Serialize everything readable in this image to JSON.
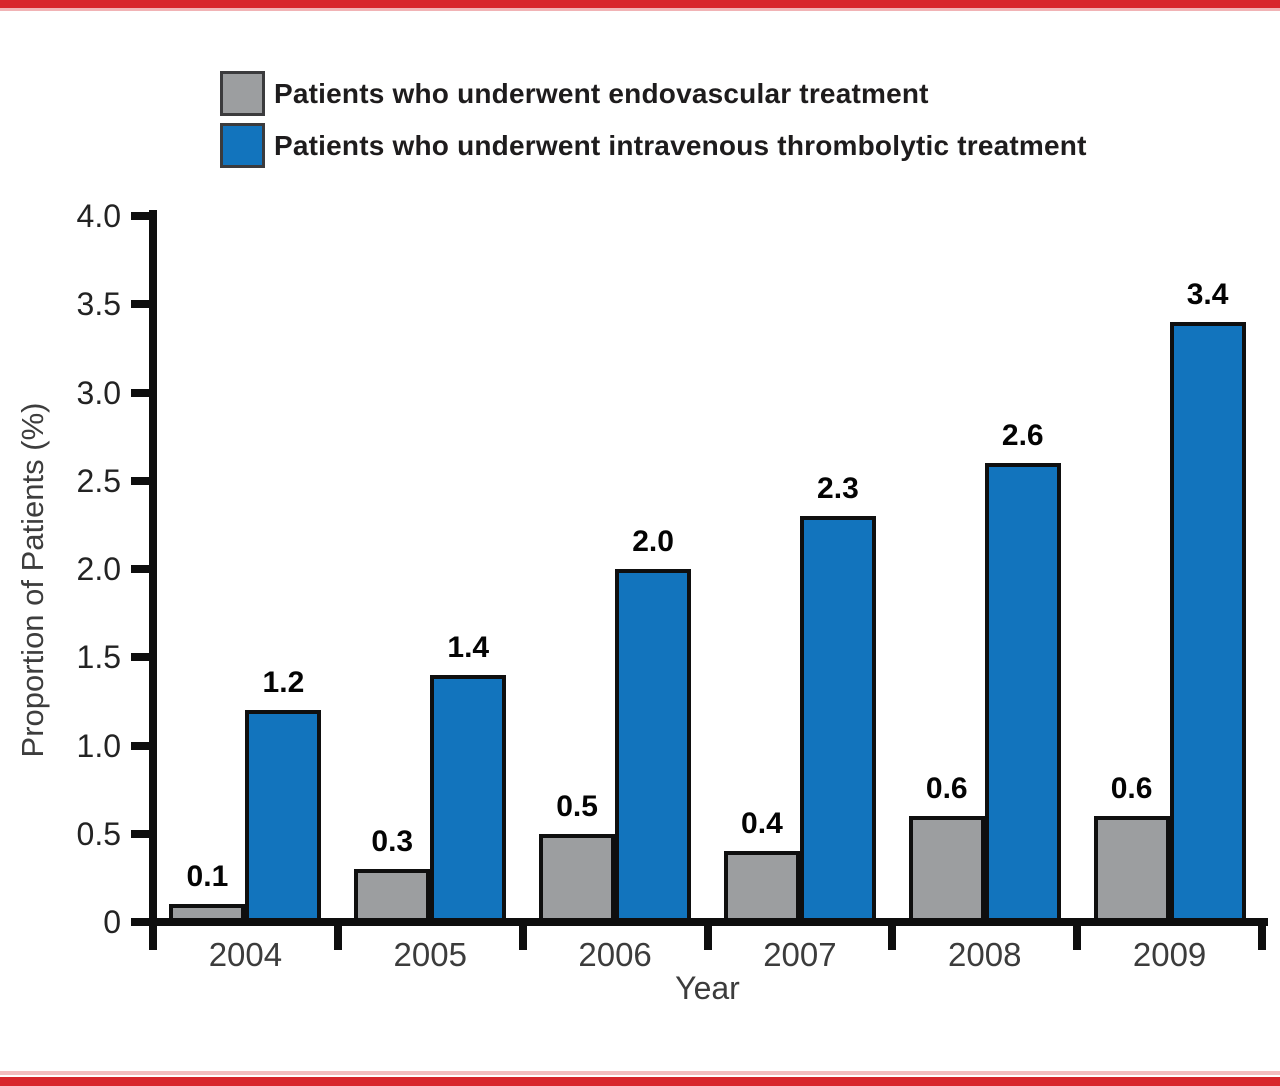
{
  "figure": {
    "border_color": "#d8262c",
    "border_color_light": "#eba6a9"
  },
  "chart_data": {
    "type": "bar",
    "categories": [
      "2004",
      "2005",
      "2006",
      "2007",
      "2008",
      "2009"
    ],
    "series": [
      {
        "name": "Patients who underwent endovascular treatment",
        "color": "#9c9ea0",
        "values": [
          0.1,
          0.3,
          0.5,
          0.4,
          0.6,
          0.6
        ]
      },
      {
        "name": "Patients who underwent intravenous thrombolytic treatment",
        "color": "#1274bd",
        "values": [
          1.2,
          1.4,
          2.0,
          2.3,
          2.6,
          3.4
        ]
      }
    ],
    "bar_labels": [
      "0.1",
      "0.3",
      "0.5",
      "0.4",
      "0.6",
      "0.6",
      "1.2",
      "1.4",
      "2.0",
      "2.3",
      "2.6",
      "3.4"
    ],
    "xlabel": "Year",
    "ylabel": "Proportion of Patients (%)",
    "ylim": [
      0,
      4.0
    ],
    "yticks": [
      0,
      0.5,
      1.0,
      1.5,
      2.0,
      2.5,
      3.0,
      3.5,
      4.0
    ],
    "ytick_labels": [
      "0",
      "0.5",
      "1.0",
      "1.5",
      "2.0",
      "2.5",
      "3.0",
      "3.5",
      "4.0"
    ],
    "grid": false,
    "legend_position": "top-left",
    "edge_color": "#0f0f0f"
  }
}
